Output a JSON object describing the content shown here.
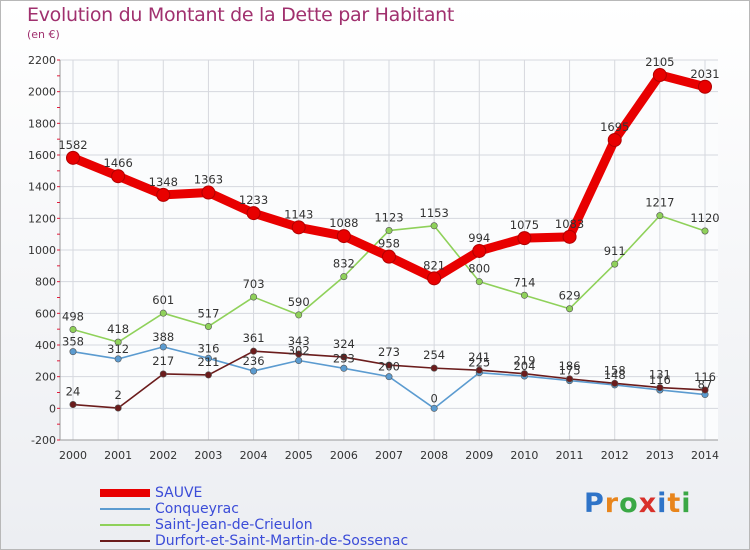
{
  "title": "Evolution du Montant de la Dette par Habitant",
  "unit": "(en €)",
  "logo": {
    "letters": [
      "P",
      "r",
      "o",
      "x",
      "i",
      "t",
      "i"
    ],
    "colors": [
      "#2f74c8",
      "#e8851c",
      "#3aa845",
      "#d9302a",
      "#2f74c8",
      "#e8851c",
      "#3aa845"
    ]
  },
  "chart_data": {
    "type": "line",
    "x": [
      2000,
      2001,
      2002,
      2003,
      2004,
      2005,
      2006,
      2007,
      2008,
      2009,
      2010,
      2011,
      2012,
      2013,
      2014
    ],
    "yticks": [
      -200,
      0,
      200,
      400,
      600,
      800,
      1000,
      1200,
      1400,
      1600,
      1800,
      2000,
      2200
    ],
    "ylim": [
      -200,
      2200
    ],
    "grid": true,
    "legend": "bottom-left",
    "series": [
      {
        "name": "SAUVE",
        "color": "#e80000",
        "values": [
          1582,
          1466,
          1348,
          1363,
          1233,
          1143,
          1088,
          958,
          821,
          994,
          1075,
          1083,
          1695,
          2105,
          2031
        ],
        "labels": [
          "1582",
          "1466",
          "1348",
          "1363",
          "1233",
          "1143",
          "1088",
          "958",
          "821",
          "994",
          "1075",
          "1083",
          "1695",
          "2105",
          "2031"
        ]
      },
      {
        "name": "Conqueyrac",
        "color": "#5b9bd0",
        "values": [
          358,
          312,
          388,
          316,
          236,
          302,
          253,
          200,
          0,
          225,
          204,
          175,
          148,
          116,
          87
        ],
        "labels": [
          "358",
          "312",
          "388",
          "316",
          "236",
          "302",
          "253",
          "200",
          "0",
          "225",
          "204",
          "175",
          "148",
          "116",
          "87"
        ]
      },
      {
        "name": "Saint-Jean-de-Crieulon",
        "color": "#8fd15a",
        "values": [
          498,
          418,
          601,
          517,
          703,
          590,
          832,
          1123,
          1153,
          800,
          714,
          629,
          911,
          1217,
          1120
        ],
        "labels": [
          "498",
          "418",
          "601",
          "517",
          "703",
          "590",
          "832",
          "1123",
          "1153",
          "800",
          "714",
          "629",
          "911",
          "1217",
          "1120"
        ]
      },
      {
        "name": "Durfort-et-Saint-Martin-de-Sossenac",
        "color": "#6b1c1c",
        "values": [
          24,
          2,
          217,
          211,
          361,
          343,
          324,
          273,
          254,
          241,
          219,
          186,
          158,
          131,
          116
        ],
        "labels": [
          "24",
          "2",
          "217",
          "211",
          "361",
          "343",
          "324",
          "273",
          "254",
          "241",
          "219",
          "186",
          "158",
          "131",
          "116"
        ]
      }
    ]
  }
}
